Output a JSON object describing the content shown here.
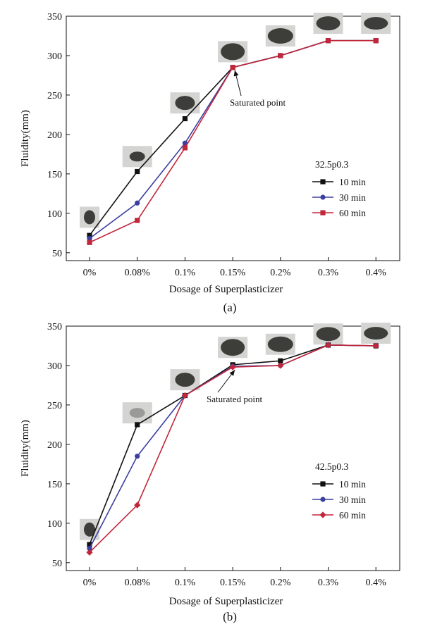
{
  "chart_data": [
    {
      "type": "line",
      "panel_label": "(a)",
      "xlabel": "Dosage of Superplasticizer",
      "ylabel": "Fluidity(mm)",
      "categories": [
        "0%",
        "0.08%",
        "0.1%",
        "0.15%",
        "0.2%",
        "0.3%",
        "0.4%"
      ],
      "ylim": [
        40,
        350
      ],
      "yticks": [
        50,
        100,
        150,
        200,
        250,
        300,
        350
      ],
      "legend_title": "32.5p0.3",
      "legend_position": "right",
      "series": [
        {
          "name": "10 min",
          "color": "#111111",
          "marker": "square",
          "values": [
            72,
            153,
            220,
            285,
            300,
            319,
            319
          ]
        },
        {
          "name": "30 min",
          "color": "#3b3fa0",
          "marker": "circle",
          "values": [
            68,
            113,
            189,
            285,
            300,
            319,
            319
          ]
        },
        {
          "name": "60 min",
          "color": "#c1273b",
          "marker": "square",
          "values": [
            63,
            91,
            183,
            285,
            300,
            319,
            319
          ]
        }
      ],
      "annotation": {
        "text": "Saturated point",
        "category": "0.15%",
        "value": 285
      },
      "photos": [
        {
          "category": "0%",
          "value": 95
        },
        {
          "category": "0.08%",
          "value": 172
        },
        {
          "category": "0.1%",
          "value": 240
        },
        {
          "category": "0.15%",
          "value": 305
        },
        {
          "category": "0.2%",
          "value": 325
        },
        {
          "category": "0.3%",
          "value": 341
        },
        {
          "category": "0.4%",
          "value": 341
        }
      ]
    },
    {
      "type": "line",
      "panel_label": "(b)",
      "xlabel": "Dosage of Superplasticizer",
      "ylabel": "Fluidity(mm)",
      "categories": [
        "0%",
        "0.08%",
        "0.1%",
        "0.15%",
        "0.2%",
        "0.3%",
        "0.4%"
      ],
      "ylim": [
        40,
        350
      ],
      "yticks": [
        50,
        100,
        150,
        200,
        250,
        300,
        350
      ],
      "legend_title": "42.5p0.3",
      "legend_position": "right",
      "series": [
        {
          "name": "10 min",
          "color": "#111111",
          "marker": "square",
          "values": [
            73,
            225,
            262,
            301,
            306,
            326,
            325
          ]
        },
        {
          "name": "30 min",
          "color": "#3b3fa0",
          "marker": "circle",
          "values": [
            68,
            185,
            262,
            299,
            300,
            326,
            325
          ]
        },
        {
          "name": "60 min",
          "color": "#c1273b",
          "marker": "diamond",
          "values": [
            63,
            123,
            262,
            298,
            300,
            326,
            325
          ]
        }
      ],
      "annotation": {
        "text": "Saturated point",
        "category": "0.15%",
        "value": 298
      },
      "photos": [
        {
          "category": "0%",
          "value": 92
        },
        {
          "category": "0.08%",
          "value": 240
        },
        {
          "category": "0.1%",
          "value": 282
        },
        {
          "category": "0.15%",
          "value": 323
        },
        {
          "category": "0.2%",
          "value": 327
        },
        {
          "category": "0.3%",
          "value": 340
        },
        {
          "category": "0.4%",
          "value": 341
        }
      ]
    }
  ]
}
